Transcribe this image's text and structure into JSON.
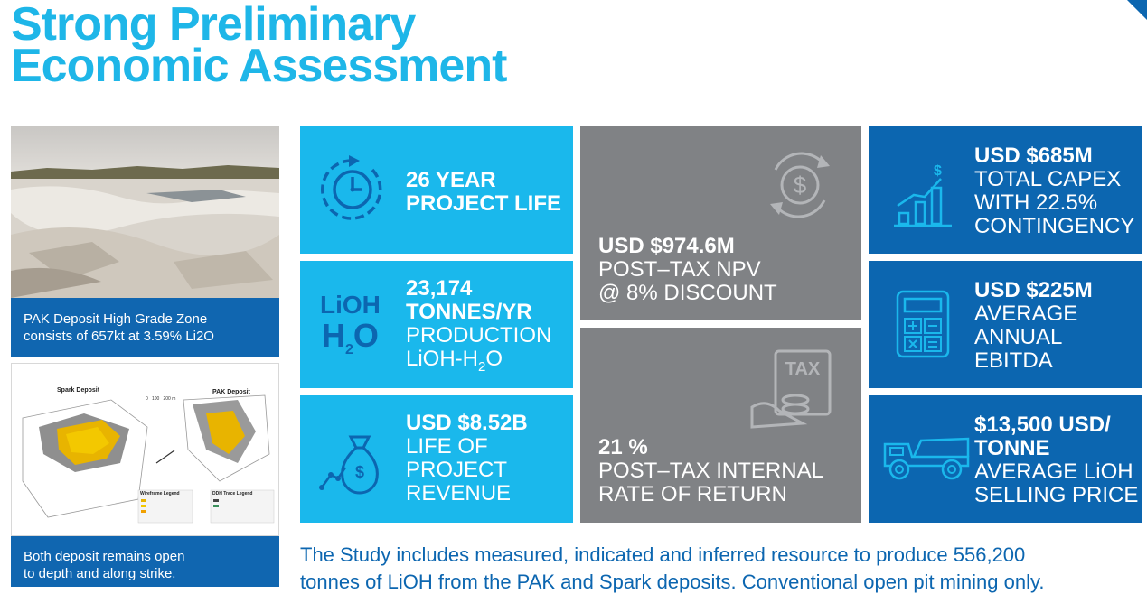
{
  "title": {
    "line1": "Strong Preliminary",
    "line2": "Economic Assessment"
  },
  "captions": {
    "photo": [
      "PAK Deposit High Grade Zone",
      "consists of 657kt at 3.59% Li2O"
    ],
    "model": [
      "Both deposit remains open",
      "to depth and along strike."
    ]
  },
  "model_figure": {
    "spark_label": "Spark Deposit",
    "pak_label": "PAK Deposit",
    "scale": [
      "0",
      "100",
      "200 m"
    ],
    "wireframe_legend": "Wireframe Legend",
    "ddh_legend": "DDH Trace Legend"
  },
  "tiles": {
    "project_life": {
      "bold": [
        "26 YEAR",
        "PROJECT LIFE"
      ]
    },
    "production": {
      "bold": [
        "23,174",
        "TONNES/YR"
      ],
      "normal": [
        "PRODUCTION"
      ],
      "formula": "LiOH-H",
      "formula_sub": "2",
      "formula_end": "O",
      "icon_top": "LiOH",
      "icon_bottom": "H",
      "icon_sub": "2",
      "icon_end": "O"
    },
    "revenue": {
      "bold": [
        "USD $8.52B"
      ],
      "normal": [
        "LIFE OF",
        "PROJECT",
        "REVENUE"
      ]
    },
    "npv": {
      "bold": [
        "USD $974.6M"
      ],
      "normal": [
        "POST–TAX NPV",
        "@ 8% DISCOUNT"
      ]
    },
    "irr": {
      "bold": [
        "21 %"
      ],
      "normal": [
        "POST–TAX INTERNAL",
        "RATE OF RETURN"
      ],
      "icon_text": "TAX"
    },
    "capex": {
      "bold": [
        "USD $685M"
      ],
      "normal": [
        "TOTAL CAPEX",
        "WITH 22.5%",
        "CONTINGENCY"
      ]
    },
    "ebitda": {
      "bold": [
        "USD $225M"
      ],
      "normal": [
        "AVERAGE",
        "ANNUAL",
        "EBITDA"
      ]
    },
    "price": {
      "bold": [
        "$13,500 USD/",
        "TONNE"
      ],
      "normal": [
        "AVERAGE LiOH",
        "SELLING PRICE"
      ]
    }
  },
  "footer": {
    "line1": "The Study includes measured, indicated and inferred resource to produce 556,200",
    "line2": "tonnes of LiOH from the PAK and Spark deposits. Conventional open pit mining only."
  },
  "colors": {
    "accent": "#1eb6e8",
    "tile_light": "#1ab8ec",
    "tile_gray": "#808285",
    "tile_dark": "#0c66b0"
  }
}
